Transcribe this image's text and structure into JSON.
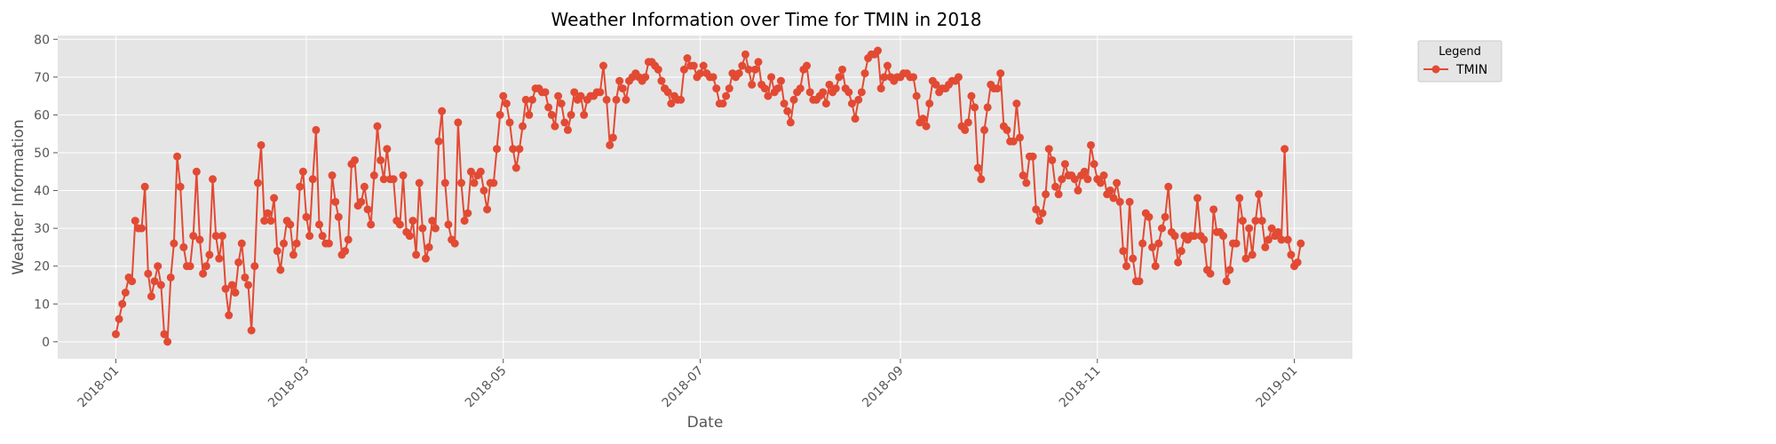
{
  "chart_data": {
    "type": "line",
    "title": "Weather Information over Time for TMIN in 2018",
    "xlabel": "Date",
    "ylabel": "Weather Information",
    "x_start": "2018-01-01",
    "x_range": [
      "2017-12-14",
      "2019-01-19"
    ],
    "ylim": [
      -4.5,
      81
    ],
    "y_ticks": [
      0,
      10,
      20,
      30,
      40,
      50,
      60,
      70,
      80
    ],
    "x_ticks": [
      "2018-01",
      "2018-03",
      "2018-05",
      "2018-07",
      "2018-09",
      "2018-11",
      "2019-01"
    ],
    "x_tick_dates": [
      "2018-01-01",
      "2018-03-01",
      "2018-05-01",
      "2018-07-01",
      "2018-09-01",
      "2018-11-01",
      "2019-01-01"
    ],
    "grid": true,
    "legend": {
      "title": "Legend",
      "position": "outside-top-right"
    },
    "colors": {
      "series": "#E24A33",
      "background": "#E5E5E5",
      "grid": "#FFFFFF"
    },
    "series": [
      {
        "name": "TMIN",
        "values": [
          2,
          6,
          10,
          13,
          17,
          16,
          32,
          30,
          30,
          41,
          18,
          12,
          16,
          20,
          15,
          2,
          0,
          17,
          26,
          49,
          41,
          25,
          20,
          20,
          28,
          45,
          27,
          18,
          20,
          23,
          43,
          28,
          22,
          28,
          14,
          7,
          15,
          13,
          21,
          26,
          17,
          15,
          3,
          20,
          42,
          52,
          32,
          34,
          32,
          38,
          24,
          19,
          26,
          32,
          31,
          23,
          26,
          41,
          45,
          33,
          28,
          43,
          56,
          31,
          28,
          26,
          26,
          44,
          37,
          33,
          23,
          24,
          27,
          47,
          48,
          36,
          37,
          41,
          35,
          31,
          44,
          57,
          48,
          43,
          51,
          43,
          43,
          32,
          31,
          44,
          29,
          28,
          32,
          23,
          42,
          30,
          22,
          25,
          32,
          30,
          53,
          61,
          42,
          31,
          27,
          26,
          58,
          42,
          32,
          34,
          45,
          42,
          44,
          45,
          40,
          35,
          42,
          42,
          51,
          60,
          65,
          63,
          58,
          51,
          46,
          51,
          57,
          64,
          60,
          64,
          67,
          67,
          66,
          66,
          62,
          60,
          57,
          65,
          63,
          58,
          56,
          60,
          66,
          64,
          65,
          60,
          64,
          65,
          65,
          66,
          66,
          73,
          64,
          52,
          54,
          64,
          69,
          67,
          64,
          69,
          70,
          71,
          70,
          69,
          70,
          74,
          74,
          73,
          72,
          69,
          67,
          66,
          63,
          65,
          64,
          64,
          72,
          75,
          73,
          73,
          70,
          71,
          73,
          71,
          70,
          70,
          67,
          63,
          63,
          65,
          67,
          71,
          70,
          71,
          73,
          76,
          72,
          68,
          72,
          74,
          68,
          67,
          65,
          70,
          66,
          67,
          69,
          63,
          61,
          58,
          64,
          66,
          67,
          72,
          73,
          66,
          64,
          64,
          65,
          66,
          63,
          68,
          66,
          67,
          70,
          72,
          67,
          66,
          63,
          59,
          64,
          66,
          71,
          75,
          76,
          76,
          77,
          67,
          70,
          73,
          70,
          69,
          70,
          70,
          71,
          71,
          70,
          70,
          65,
          58,
          59,
          57,
          63,
          69,
          68,
          66,
          67,
          67,
          68,
          69,
          69,
          70,
          57,
          56,
          58,
          65,
          62,
          46,
          43,
          56,
          62,
          68,
          67,
          67,
          71,
          57,
          56,
          53,
          53,
          63,
          54,
          44,
          42,
          49,
          49,
          35,
          32,
          34,
          39,
          51,
          48,
          41,
          39,
          43,
          47,
          44,
          44,
          43,
          40,
          44,
          45,
          43,
          52,
          47,
          43,
          42,
          44,
          39,
          40,
          38,
          42,
          37,
          24,
          20,
          37,
          22,
          16,
          16,
          26,
          34,
          33,
          25,
          20,
          26,
          30,
          33,
          41,
          29,
          28,
          21,
          24,
          28,
          27,
          28,
          28,
          38,
          28,
          27,
          19,
          18,
          35,
          29,
          29,
          28,
          16,
          19,
          26,
          26,
          38,
          32,
          22,
          30,
          23,
          32,
          39,
          32,
          25,
          27,
          30,
          28,
          29,
          27,
          51,
          27,
          23,
          20,
          21,
          26
        ]
      }
    ]
  }
}
